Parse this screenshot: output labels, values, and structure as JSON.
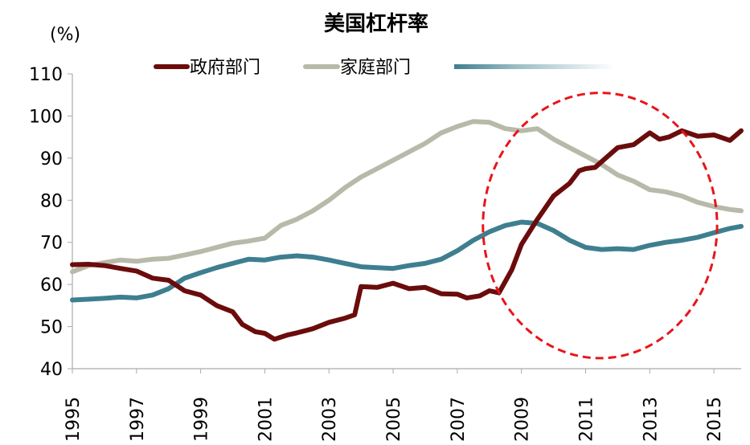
{
  "chart_data": {
    "type": "line",
    "title": "美国杠杆率",
    "unit_label": "(%)",
    "xlim": [
      1995,
      2015.85
    ],
    "ylim": [
      40,
      110
    ],
    "y_ticks": [
      40,
      50,
      60,
      70,
      80,
      90,
      100,
      110
    ],
    "x_tick_labels": [
      "1995",
      "1997",
      "1999",
      "2001",
      "2003",
      "2005",
      "2007",
      "2009",
      "2011",
      "2013",
      "2015"
    ],
    "grid": false,
    "legend_position": "top",
    "series": [
      {
        "name": "政府部门",
        "color": "#6b0c0c",
        "points": [
          [
            1995.0,
            64.7
          ],
          [
            1995.5,
            64.8
          ],
          [
            1996.0,
            64.5
          ],
          [
            1996.5,
            63.8
          ],
          [
            1997.0,
            63.2
          ],
          [
            1997.5,
            61.5
          ],
          [
            1998.0,
            61.0
          ],
          [
            1998.5,
            58.5
          ],
          [
            1999.0,
            57.5
          ],
          [
            1999.5,
            55.0
          ],
          [
            2000.0,
            53.5
          ],
          [
            2000.3,
            50.5
          ],
          [
            2000.7,
            48.8
          ],
          [
            2001.0,
            48.4
          ],
          [
            2001.3,
            47.0
          ],
          [
            2001.7,
            48.0
          ],
          [
            2002.0,
            48.5
          ],
          [
            2002.5,
            49.5
          ],
          [
            2003.0,
            51.0
          ],
          [
            2003.5,
            52.0
          ],
          [
            2003.8,
            52.8
          ],
          [
            2004.0,
            59.5
          ],
          [
            2004.5,
            59.3
          ],
          [
            2005.0,
            60.3
          ],
          [
            2005.5,
            59.0
          ],
          [
            2006.0,
            59.3
          ],
          [
            2006.5,
            57.8
          ],
          [
            2007.0,
            57.7
          ],
          [
            2007.3,
            56.8
          ],
          [
            2007.7,
            57.3
          ],
          [
            2008.0,
            58.5
          ],
          [
            2008.3,
            58.0
          ],
          [
            2008.7,
            63.5
          ],
          [
            2009.0,
            69.5
          ],
          [
            2009.5,
            75.5
          ],
          [
            2010.0,
            81.0
          ],
          [
            2010.5,
            84.0
          ],
          [
            2010.8,
            87.0
          ],
          [
            2011.0,
            87.5
          ],
          [
            2011.3,
            87.8
          ],
          [
            2011.7,
            90.5
          ],
          [
            2012.0,
            92.5
          ],
          [
            2012.5,
            93.2
          ],
          [
            2013.0,
            96.0
          ],
          [
            2013.3,
            94.5
          ],
          [
            2013.6,
            95.0
          ],
          [
            2014.0,
            96.5
          ],
          [
            2014.5,
            95.2
          ],
          [
            2015.0,
            95.5
          ],
          [
            2015.5,
            94.2
          ],
          [
            2015.85,
            96.5
          ]
        ]
      },
      {
        "name": "家庭部门",
        "color": "#b9b9aa",
        "points": [
          [
            1995.0,
            63.0
          ],
          [
            1995.5,
            64.5
          ],
          [
            1996.0,
            65.2
          ],
          [
            1996.5,
            65.8
          ],
          [
            1997.0,
            65.5
          ],
          [
            1997.5,
            66.0
          ],
          [
            1998.0,
            66.2
          ],
          [
            1998.5,
            67.0
          ],
          [
            1999.0,
            67.8
          ],
          [
            1999.5,
            68.8
          ],
          [
            2000.0,
            69.8
          ],
          [
            2000.5,
            70.3
          ],
          [
            2001.0,
            71.0
          ],
          [
            2001.5,
            74.0
          ],
          [
            2002.0,
            75.5
          ],
          [
            2002.5,
            77.5
          ],
          [
            2003.0,
            80.0
          ],
          [
            2003.5,
            83.0
          ],
          [
            2004.0,
            85.5
          ],
          [
            2004.5,
            87.5
          ],
          [
            2005.0,
            89.5
          ],
          [
            2005.5,
            91.5
          ],
          [
            2006.0,
            93.5
          ],
          [
            2006.5,
            96.0
          ],
          [
            2007.0,
            97.5
          ],
          [
            2007.5,
            98.7
          ],
          [
            2008.0,
            98.5
          ],
          [
            2008.5,
            97.0
          ],
          [
            2009.0,
            96.5
          ],
          [
            2009.5,
            97.0
          ],
          [
            2010.0,
            94.5
          ],
          [
            2010.5,
            92.5
          ],
          [
            2011.0,
            90.5
          ],
          [
            2011.5,
            88.5
          ],
          [
            2012.0,
            86.0
          ],
          [
            2012.5,
            84.5
          ],
          [
            2013.0,
            82.5
          ],
          [
            2013.5,
            82.0
          ],
          [
            2014.0,
            81.0
          ],
          [
            2014.5,
            79.5
          ],
          [
            2015.0,
            78.5
          ],
          [
            2015.5,
            77.8
          ],
          [
            2015.85,
            77.5
          ]
        ]
      },
      {
        "name": "",
        "color": "#3e7f8f",
        "points": [
          [
            1995.0,
            56.3
          ],
          [
            1995.5,
            56.5
          ],
          [
            1996.0,
            56.7
          ],
          [
            1996.5,
            57.0
          ],
          [
            1997.0,
            56.8
          ],
          [
            1997.5,
            57.5
          ],
          [
            1998.0,
            59.0
          ],
          [
            1998.5,
            61.5
          ],
          [
            1999.0,
            62.8
          ],
          [
            1999.5,
            64.0
          ],
          [
            2000.0,
            65.0
          ],
          [
            2000.5,
            66.0
          ],
          [
            2001.0,
            65.8
          ],
          [
            2001.5,
            66.5
          ],
          [
            2002.0,
            66.8
          ],
          [
            2002.5,
            66.5
          ],
          [
            2003.0,
            65.8
          ],
          [
            2003.5,
            65.0
          ],
          [
            2004.0,
            64.2
          ],
          [
            2004.5,
            64.0
          ],
          [
            2005.0,
            63.8
          ],
          [
            2005.5,
            64.5
          ],
          [
            2006.0,
            65.0
          ],
          [
            2006.5,
            66.0
          ],
          [
            2007.0,
            68.0
          ],
          [
            2007.5,
            70.5
          ],
          [
            2008.0,
            72.5
          ],
          [
            2008.5,
            74.0
          ],
          [
            2009.0,
            74.8
          ],
          [
            2009.5,
            74.5
          ],
          [
            2010.0,
            72.8
          ],
          [
            2010.5,
            70.5
          ],
          [
            2011.0,
            68.8
          ],
          [
            2011.5,
            68.3
          ],
          [
            2012.0,
            68.5
          ],
          [
            2012.5,
            68.3
          ],
          [
            2013.0,
            69.3
          ],
          [
            2013.5,
            70.0
          ],
          [
            2014.0,
            70.5
          ],
          [
            2014.5,
            71.2
          ],
          [
            2015.0,
            72.3
          ],
          [
            2015.5,
            73.3
          ],
          [
            2015.85,
            73.8
          ]
        ]
      }
    ],
    "annotation": {
      "shape": "dashed-ellipse",
      "color": "#e8151b",
      "center_x": 2011.45,
      "center_y": 74,
      "radius_x_years": 3.65,
      "radius_y_value": 31.5
    }
  }
}
